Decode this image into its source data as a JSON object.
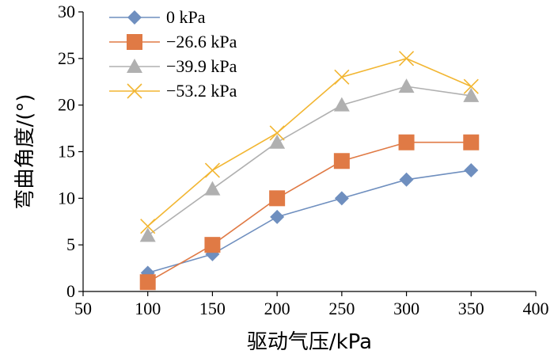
{
  "chart_data": {
    "type": "line",
    "xlabel": "驱动气压/kPa",
    "ylabel": "弯曲角度/(°)",
    "xlim": [
      50,
      400
    ],
    "ylim": [
      0,
      30
    ],
    "x_ticks": [
      50,
      100,
      150,
      200,
      250,
      300,
      350,
      400
    ],
    "y_ticks": [
      0,
      5,
      10,
      15,
      20,
      25,
      30
    ],
    "grid": false,
    "legend_position": "top-left",
    "x": [
      100,
      150,
      200,
      250,
      300,
      350
    ],
    "series": [
      {
        "name": "0 kPa",
        "color": "#6f8fbf",
        "marker": "diamond",
        "values": [
          2,
          4,
          8,
          10,
          12,
          13
        ]
      },
      {
        "name": "−26.6 kPa",
        "color": "#e07a45",
        "marker": "square",
        "values": [
          1,
          5,
          10,
          14,
          16,
          16
        ]
      },
      {
        "name": "−39.9 kPa",
        "color": "#b0b0b0",
        "marker": "triangle",
        "values": [
          6,
          11,
          16,
          20,
          22,
          21
        ]
      },
      {
        "name": "−53.2 kPa",
        "color": "#f2b632",
        "marker": "cross",
        "values": [
          7,
          13,
          17,
          23,
          25,
          22
        ]
      }
    ]
  }
}
